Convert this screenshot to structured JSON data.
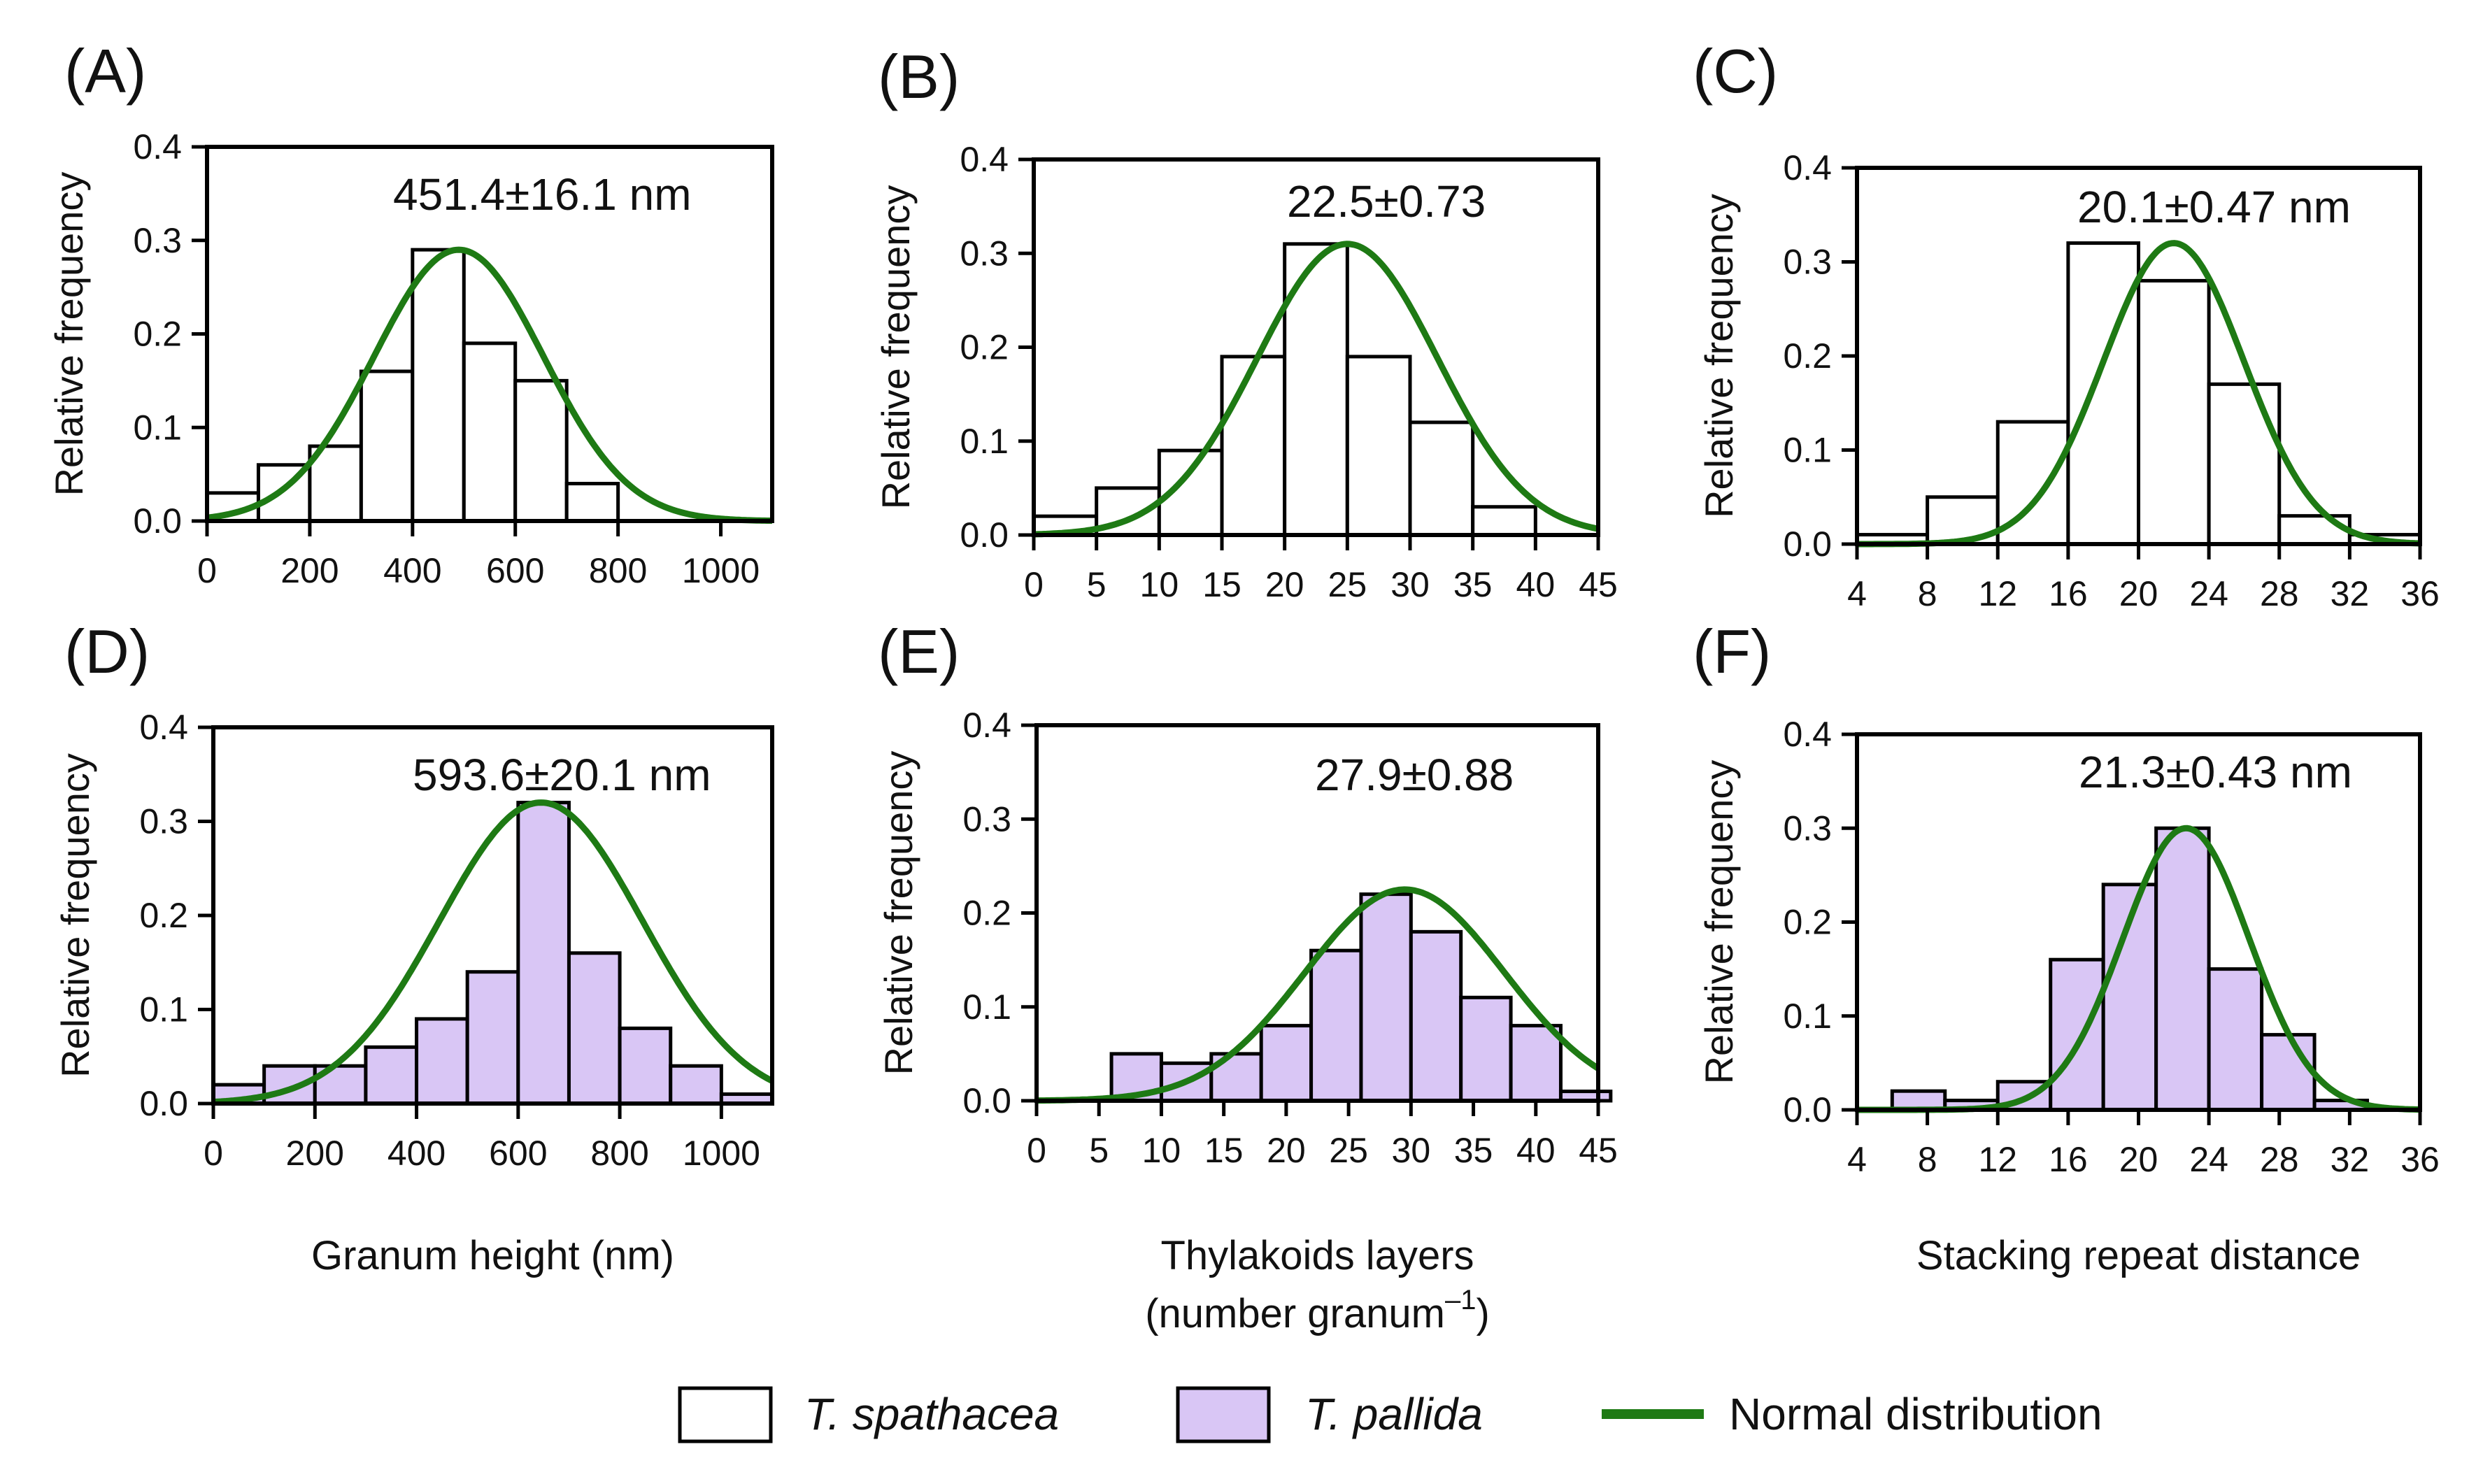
{
  "colors": {
    "spathacea_fill": "#ffffff",
    "pallida_fill": "#d9c6f5",
    "bar_stroke": "#000000",
    "normal_line": "#1e7a14",
    "axis": "#000000"
  },
  "legend": {
    "spathacea": "T. spathacea",
    "pallida": "T. pallida",
    "normal": "Normal distribution"
  },
  "chart_data": [
    {
      "id": "A",
      "label": "(A)",
      "type": "bar",
      "species": "T. spathacea",
      "annotation": "451.4±16.1 nm",
      "ylabel": "Relative frequency",
      "xlabel": "",
      "xlim": [
        0,
        1100
      ],
      "ylim": [
        0,
        0.4
      ],
      "xticks": [
        0,
        200,
        400,
        600,
        800,
        1000
      ],
      "xtick_labels": [
        "0",
        "200",
        "400",
        "600",
        "800",
        "1000"
      ],
      "yticks": [
        0,
        0.1,
        0.2,
        0.3,
        0.4
      ],
      "ytick_labels": [
        "0.0",
        "0.1",
        "0.2",
        "0.3",
        "0.4"
      ],
      "bins": [
        [
          0,
          100,
          0.03
        ],
        [
          100,
          200,
          0.06
        ],
        [
          200,
          300,
          0.08
        ],
        [
          300,
          400,
          0.16
        ],
        [
          400,
          500,
          0.29
        ],
        [
          500,
          600,
          0.19
        ],
        [
          600,
          700,
          0.15
        ],
        [
          700,
          800,
          0.04
        ]
      ],
      "normal": {
        "mu": 490,
        "sigma": 165,
        "peak": 0.29
      }
    },
    {
      "id": "B",
      "label": "(B)",
      "type": "bar",
      "species": "T. spathacea",
      "annotation": "22.5±0.73",
      "ylabel": "Relative frequency",
      "xlabel": "",
      "xlim": [
        0,
        45
      ],
      "ylim": [
        0,
        0.4
      ],
      "xticks": [
        0,
        5,
        10,
        15,
        20,
        25,
        30,
        35,
        40,
        45
      ],
      "xtick_labels": [
        "0",
        "5",
        "10",
        "15",
        "20",
        "25",
        "30",
        "35",
        "40",
        "45"
      ],
      "yticks": [
        0,
        0.1,
        0.2,
        0.3,
        0.4
      ],
      "ytick_labels": [
        "0.0",
        "0.1",
        "0.2",
        "0.3",
        "0.4"
      ],
      "bins": [
        [
          0,
          5,
          0.02
        ],
        [
          5,
          10,
          0.05
        ],
        [
          10,
          15,
          0.09
        ],
        [
          15,
          20,
          0.19
        ],
        [
          20,
          25,
          0.31
        ],
        [
          25,
          30,
          0.19
        ],
        [
          30,
          35,
          0.12
        ],
        [
          35,
          40,
          0.03
        ]
      ],
      "normal": {
        "mu": 25,
        "sigma": 7.2,
        "peak": 0.31
      }
    },
    {
      "id": "C",
      "label": "(C)",
      "type": "bar",
      "species": "T. spathacea",
      "annotation": "20.1±0.47 nm",
      "ylabel": "Relative frequency",
      "xlabel": "",
      "xlim": [
        4,
        36
      ],
      "ylim": [
        0,
        0.4
      ],
      "xticks": [
        4,
        8,
        12,
        16,
        20,
        24,
        28,
        32,
        36
      ],
      "xtick_labels": [
        "4",
        "8",
        "12",
        "16",
        "20",
        "24",
        "28",
        "32",
        "36"
      ],
      "yticks": [
        0,
        0.1,
        0.2,
        0.3,
        0.4
      ],
      "ytick_labels": [
        "0.0",
        "0.1",
        "0.2",
        "0.3",
        "0.4"
      ],
      "bins": [
        [
          4,
          8,
          0.01
        ],
        [
          8,
          12,
          0.05
        ],
        [
          12,
          16,
          0.13
        ],
        [
          16,
          20,
          0.32
        ],
        [
          20,
          24,
          0.28
        ],
        [
          24,
          28,
          0.17
        ],
        [
          28,
          32,
          0.03
        ],
        [
          32,
          36,
          0.01
        ]
      ],
      "normal": {
        "mu": 22,
        "sigma": 4.0,
        "peak": 0.32
      }
    },
    {
      "id": "D",
      "label": "(D)",
      "type": "bar",
      "species": "T. pallida",
      "annotation": "593.6±20.1 nm",
      "ylabel": "Relative frequency",
      "xlabel": "Granum height (nm)",
      "xlim": [
        0,
        1100
      ],
      "ylim": [
        0,
        0.4
      ],
      "xticks": [
        0,
        200,
        400,
        600,
        800,
        1000
      ],
      "xtick_labels": [
        "0",
        "200",
        "400",
        "600",
        "800",
        "1000"
      ],
      "yticks": [
        0,
        0.1,
        0.2,
        0.3,
        0.4
      ],
      "ytick_labels": [
        "0.0",
        "0.1",
        "0.2",
        "0.3",
        "0.4"
      ],
      "bins": [
        [
          0,
          100,
          0.02
        ],
        [
          100,
          200,
          0.04
        ],
        [
          200,
          300,
          0.04
        ],
        [
          300,
          400,
          0.06
        ],
        [
          400,
          500,
          0.09
        ],
        [
          500,
          600,
          0.14
        ],
        [
          600,
          700,
          0.32
        ],
        [
          700,
          800,
          0.16
        ],
        [
          800,
          900,
          0.08
        ],
        [
          900,
          1000,
          0.04
        ],
        [
          1000,
          1100,
          0.01
        ]
      ],
      "normal": {
        "mu": 645,
        "sigma": 200,
        "peak": 0.32
      }
    },
    {
      "id": "E",
      "label": "(E)",
      "type": "bar",
      "species": "T. pallida",
      "annotation": "27.9±0.88",
      "ylabel": "Relative frequency",
      "xlabel": "Thylakoids layers",
      "xlabel2": "(number granum",
      "xlabel2_sup": "–1",
      "xlabel2_end": ")",
      "xlim": [
        0,
        45
      ],
      "ylim": [
        0,
        0.4
      ],
      "xticks": [
        0,
        5,
        10,
        15,
        20,
        25,
        30,
        35,
        40,
        45
      ],
      "xtick_labels": [
        "0",
        "5",
        "10",
        "15",
        "20",
        "25",
        "30",
        "35",
        "40",
        "45"
      ],
      "yticks": [
        0,
        0.1,
        0.2,
        0.3,
        0.4
      ],
      "ytick_labels": [
        "0.0",
        "0.1",
        "0.2",
        "0.3",
        "0.4"
      ],
      "bins": [
        [
          6,
          10,
          0.05
        ],
        [
          10,
          14,
          0.04
        ],
        [
          14,
          18,
          0.05
        ],
        [
          18,
          22,
          0.08
        ],
        [
          22,
          26,
          0.16
        ],
        [
          26,
          30,
          0.22
        ],
        [
          30,
          34,
          0.18
        ],
        [
          34,
          38,
          0.11
        ],
        [
          38,
          42,
          0.08
        ],
        [
          42,
          46,
          0.01
        ]
      ],
      "normal": {
        "mu": 29.5,
        "sigma": 8.0,
        "peak": 0.225
      }
    },
    {
      "id": "F",
      "label": "(F)",
      "type": "bar",
      "species": "T. pallida",
      "annotation": "21.3±0.43 nm",
      "ylabel": "Relative frequency",
      "xlabel": "Stacking repeat distance",
      "xlim": [
        4,
        36
      ],
      "ylim": [
        0,
        0.4
      ],
      "xticks": [
        4,
        8,
        12,
        16,
        20,
        24,
        28,
        32,
        36
      ],
      "xtick_labels": [
        "4",
        "8",
        "12",
        "16",
        "20",
        "24",
        "28",
        "32",
        "36"
      ],
      "yticks": [
        0,
        0.1,
        0.2,
        0.3,
        0.4
      ],
      "ytick_labels": [
        "0.0",
        "0.1",
        "0.2",
        "0.3",
        "0.4"
      ],
      "bins": [
        [
          6,
          9,
          0.02
        ],
        [
          9,
          12,
          0.01
        ],
        [
          12,
          15,
          0.03
        ],
        [
          15,
          18,
          0.16
        ],
        [
          18,
          21,
          0.24
        ],
        [
          21,
          24,
          0.3
        ],
        [
          24,
          27,
          0.15
        ],
        [
          27,
          30,
          0.08
        ],
        [
          30,
          33,
          0.01
        ]
      ],
      "normal": {
        "mu": 22.7,
        "sigma": 3.6,
        "peak": 0.3
      }
    }
  ]
}
